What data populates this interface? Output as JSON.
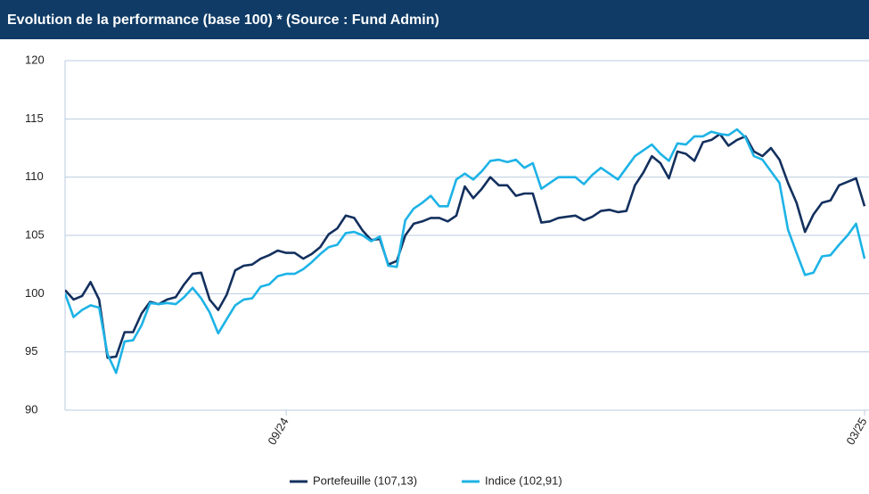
{
  "chart_data": {
    "type": "line",
    "title": "Evolution de la performance (base 100) * (Source : Fund Admin)",
    "categories": [
      null,
      null,
      null,
      null,
      null,
      null,
      null,
      null,
      null,
      null,
      null,
      null,
      null,
      null,
      null,
      null,
      null,
      null,
      null,
      null,
      null,
      null,
      null,
      null,
      null,
      null,
      "09/24",
      null,
      null,
      null,
      null,
      null,
      null,
      null,
      null,
      null,
      null,
      null,
      null,
      null,
      null,
      null,
      null,
      null,
      null,
      null,
      null,
      null,
      null,
      null,
      null,
      null,
      null,
      null,
      null,
      null,
      null,
      null,
      null,
      null,
      null,
      null,
      null,
      null,
      null,
      null,
      null,
      null,
      null,
      null,
      null,
      null,
      null,
      null,
      null,
      null,
      null,
      null,
      null,
      null,
      null,
      null,
      null,
      null,
      null,
      null,
      null,
      null,
      null,
      null,
      null,
      null,
      null,
      null,
      "03/25"
    ],
    "series": [
      {
        "name": "Portefeuille (107,13)",
        "color": "#13305e",
        "values": [
          100.3,
          99.5,
          99.8,
          101.0,
          99.5,
          94.5,
          94.6,
          96.7,
          96.7,
          98.3,
          99.3,
          99.1,
          99.5,
          99.7,
          100.8,
          101.7,
          101.8,
          99.5,
          98.6,
          99.9,
          102.0,
          102.4,
          102.5,
          103.0,
          103.3,
          103.7,
          103.5,
          103.5,
          103.0,
          103.4,
          104.0,
          105.1,
          105.6,
          106.7,
          106.5,
          105.4,
          104.6,
          104.7,
          102.5,
          102.8,
          105.0,
          106.0,
          106.2,
          106.5,
          106.5,
          106.2,
          106.7,
          109.2,
          108.2,
          109.0,
          110.0,
          109.3,
          109.3,
          108.4,
          108.6,
          108.6,
          106.1,
          106.2,
          106.5,
          106.6,
          106.7,
          106.3,
          106.6,
          107.1,
          107.2,
          107.0,
          107.1,
          109.3,
          110.4,
          111.8,
          111.2,
          109.9,
          112.2,
          112.0,
          111.4,
          113.0,
          113.2,
          113.7,
          112.7,
          113.2,
          113.5,
          112.2,
          111.8,
          112.5,
          111.5,
          109.5,
          107.8,
          105.3,
          106.8,
          107.8,
          108.0,
          109.3,
          109.6,
          109.9,
          107.5
        ]
      },
      {
        "name": "Indice (102,91)",
        "color": "#1db3e6",
        "values": [
          100.0,
          98.0,
          98.6,
          99.0,
          98.8,
          94.8,
          93.2,
          95.9,
          96.0,
          97.3,
          99.2,
          99.1,
          99.2,
          99.1,
          99.7,
          100.5,
          99.6,
          98.4,
          96.6,
          97.8,
          99.0,
          99.5,
          99.6,
          100.6,
          100.8,
          101.5,
          101.7,
          101.7,
          102.1,
          102.7,
          103.4,
          104.0,
          104.2,
          105.2,
          105.3,
          105.0,
          104.5,
          104.9,
          102.4,
          102.3,
          106.3,
          107.3,
          107.8,
          108.4,
          107.5,
          107.5,
          109.8,
          110.3,
          109.8,
          110.5,
          111.4,
          111.5,
          111.3,
          111.5,
          110.8,
          111.2,
          109.0,
          109.5,
          110.0,
          110.0,
          110.0,
          109.4,
          110.2,
          110.8,
          110.3,
          109.8,
          110.8,
          111.8,
          112.3,
          112.8,
          112.0,
          111.4,
          112.9,
          112.8,
          113.5,
          113.5,
          113.9,
          113.7,
          113.6,
          114.1,
          113.4,
          111.8,
          111.5,
          110.5,
          109.5,
          105.5,
          103.5,
          101.6,
          101.8,
          103.2,
          103.3,
          104.2,
          105.0,
          106.0,
          103.0
        ]
      }
    ],
    "ylim": [
      90,
      120
    ],
    "yticks": [
      90,
      95,
      100,
      105,
      110,
      115,
      120
    ],
    "grid": true,
    "legend": "bottom"
  }
}
